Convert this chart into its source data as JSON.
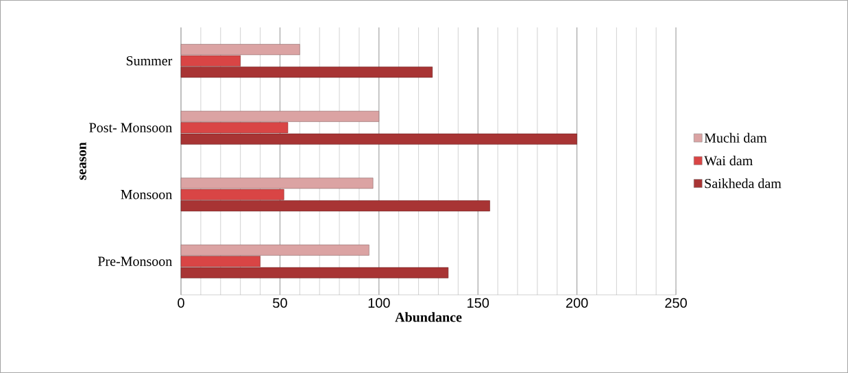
{
  "chart_data": {
    "type": "bar",
    "orientation": "horizontal",
    "xlabel": "Abundance",
    "ylabel": "season",
    "categories": [
      "Summer",
      "Post- Monsoon",
      "Monsoon",
      "Pre-Monsoon"
    ],
    "series": [
      {
        "name": "Muchi dam",
        "color": "#dba3a3",
        "values": [
          60,
          100,
          97,
          95
        ]
      },
      {
        "name": "Wai dam",
        "color": "#d94545",
        "values": [
          30,
          54,
          52,
          40
        ]
      },
      {
        "name": "Saikheda dam",
        "color": "#a83434",
        "values": [
          127,
          200,
          156,
          135
        ]
      }
    ],
    "xlim": [
      0,
      250
    ],
    "xticks": [
      0,
      50,
      100,
      150,
      200,
      250
    ],
    "grid": "x",
    "legend": "right"
  }
}
